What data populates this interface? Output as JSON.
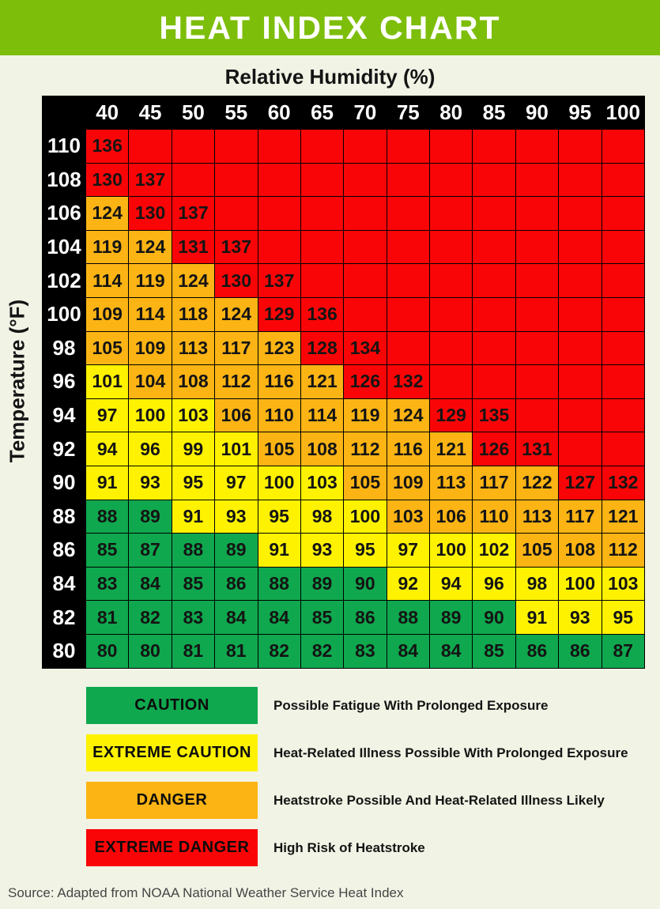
{
  "title": "HEAT INDEX CHART",
  "humidity_axis_label": "Relative Humidity (%)",
  "temperature_axis_label": "Temperature (°F)",
  "source_note": "Source: Adapted from NOAA National Weather Service Heat Index",
  "colors": {
    "banner_green": "#7DBE0A",
    "background": "#F1F3E5",
    "caution_green": "#0FA84E",
    "extreme_caution_yellow": "#FEF200",
    "danger_orange": "#FCB414",
    "extreme_danger_red": "#FA0507",
    "header_black": "#000000"
  },
  "chart_data": {
    "type": "heatmap",
    "title": "HEAT INDEX CHART",
    "xlabel": "Relative Humidity (%)",
    "ylabel": "Temperature (°F)",
    "humidity_percent": [
      40,
      45,
      50,
      55,
      60,
      65,
      70,
      75,
      80,
      85,
      90,
      95,
      100
    ],
    "temperature_f": [
      110,
      108,
      106,
      104,
      102,
      100,
      98,
      96,
      94,
      92,
      90,
      88,
      86,
      84,
      82,
      80
    ],
    "heat_index": [
      [
        136,
        null,
        null,
        null,
        null,
        null,
        null,
        null,
        null,
        null,
        null,
        null,
        null
      ],
      [
        130,
        137,
        null,
        null,
        null,
        null,
        null,
        null,
        null,
        null,
        null,
        null,
        null
      ],
      [
        124,
        130,
        137,
        null,
        null,
        null,
        null,
        null,
        null,
        null,
        null,
        null,
        null
      ],
      [
        119,
        124,
        131,
        137,
        null,
        null,
        null,
        null,
        null,
        null,
        null,
        null,
        null
      ],
      [
        114,
        119,
        124,
        130,
        137,
        null,
        null,
        null,
        null,
        null,
        null,
        null,
        null
      ],
      [
        109,
        114,
        118,
        124,
        129,
        136,
        null,
        null,
        null,
        null,
        null,
        null,
        null
      ],
      [
        105,
        109,
        113,
        117,
        123,
        128,
        134,
        null,
        null,
        null,
        null,
        null,
        null
      ],
      [
        101,
        104,
        108,
        112,
        116,
        121,
        126,
        132,
        null,
        null,
        null,
        null,
        null
      ],
      [
        97,
        100,
        103,
        106,
        110,
        114,
        119,
        124,
        129,
        135,
        null,
        null,
        null
      ],
      [
        94,
        96,
        99,
        101,
        105,
        108,
        112,
        116,
        121,
        126,
        131,
        null,
        null
      ],
      [
        91,
        93,
        95,
        97,
        100,
        103,
        105,
        109,
        113,
        117,
        122,
        127,
        132
      ],
      [
        88,
        89,
        91,
        93,
        95,
        98,
        100,
        103,
        106,
        110,
        113,
        117,
        121
      ],
      [
        85,
        87,
        88,
        89,
        91,
        93,
        95,
        97,
        100,
        102,
        105,
        108,
        112
      ],
      [
        83,
        84,
        85,
        86,
        88,
        89,
        90,
        92,
        94,
        96,
        98,
        100,
        103
      ],
      [
        81,
        82,
        83,
        84,
        84,
        85,
        86,
        88,
        89,
        90,
        91,
        93,
        95
      ],
      [
        80,
        80,
        81,
        81,
        82,
        82,
        83,
        84,
        84,
        85,
        86,
        86,
        87
      ]
    ],
    "zone_codes": [
      [
        "R",
        "R",
        "R",
        "R",
        "R",
        "R",
        "R",
        "R",
        "R",
        "R",
        "R",
        "R",
        "R"
      ],
      [
        "R",
        "R",
        "R",
        "R",
        "R",
        "R",
        "R",
        "R",
        "R",
        "R",
        "R",
        "R",
        "R"
      ],
      [
        "O",
        "R",
        "R",
        "R",
        "R",
        "R",
        "R",
        "R",
        "R",
        "R",
        "R",
        "R",
        "R"
      ],
      [
        "O",
        "O",
        "R",
        "R",
        "R",
        "R",
        "R",
        "R",
        "R",
        "R",
        "R",
        "R",
        "R"
      ],
      [
        "O",
        "O",
        "O",
        "R",
        "R",
        "R",
        "R",
        "R",
        "R",
        "R",
        "R",
        "R",
        "R"
      ],
      [
        "O",
        "O",
        "O",
        "O",
        "R",
        "R",
        "R",
        "R",
        "R",
        "R",
        "R",
        "R",
        "R"
      ],
      [
        "O",
        "O",
        "O",
        "O",
        "O",
        "R",
        "R",
        "R",
        "R",
        "R",
        "R",
        "R",
        "R"
      ],
      [
        "Y",
        "O",
        "O",
        "O",
        "O",
        "O",
        "R",
        "R",
        "R",
        "R",
        "R",
        "R",
        "R"
      ],
      [
        "Y",
        "Y",
        "Y",
        "O",
        "O",
        "O",
        "O",
        "O",
        "R",
        "R",
        "R",
        "R",
        "R"
      ],
      [
        "Y",
        "Y",
        "Y",
        "Y",
        "O",
        "O",
        "O",
        "O",
        "O",
        "R",
        "R",
        "R",
        "R"
      ],
      [
        "Y",
        "Y",
        "Y",
        "Y",
        "Y",
        "Y",
        "O",
        "O",
        "O",
        "O",
        "O",
        "R",
        "R"
      ],
      [
        "G",
        "G",
        "Y",
        "Y",
        "Y",
        "Y",
        "Y",
        "O",
        "O",
        "O",
        "O",
        "O",
        "O"
      ],
      [
        "G",
        "G",
        "G",
        "G",
        "Y",
        "Y",
        "Y",
        "Y",
        "Y",
        "Y",
        "O",
        "O",
        "O"
      ],
      [
        "G",
        "G",
        "G",
        "G",
        "G",
        "G",
        "G",
        "Y",
        "Y",
        "Y",
        "Y",
        "Y",
        "Y"
      ],
      [
        "G",
        "G",
        "G",
        "G",
        "G",
        "G",
        "G",
        "G",
        "G",
        "G",
        "Y",
        "Y",
        "Y"
      ],
      [
        "G",
        "G",
        "G",
        "G",
        "G",
        "G",
        "G",
        "G",
        "G",
        "G",
        "G",
        "G",
        "G"
      ]
    ],
    "zone_legend_map": {
      "G": "CAUTION",
      "Y": "EXTREME CAUTION",
      "O": "DANGER",
      "R": "EXTREME DANGER"
    },
    "legend_position": "bottom",
    "legend": [
      {
        "label": "CAUTION",
        "color": "#0FA84E",
        "description": "Possible Fatigue With Prolonged Exposure"
      },
      {
        "label": "EXTREME CAUTION",
        "color": "#FEF200",
        "description": "Heat-Related Illness Possible With Prolonged Exposure"
      },
      {
        "label": "DANGER",
        "color": "#FCB414",
        "description": "Heatstroke Possible And Heat-Related Illness Likely"
      },
      {
        "label": "EXTREME DANGER",
        "color": "#FA0507",
        "description": "High Risk of Heatstroke"
      }
    ]
  }
}
